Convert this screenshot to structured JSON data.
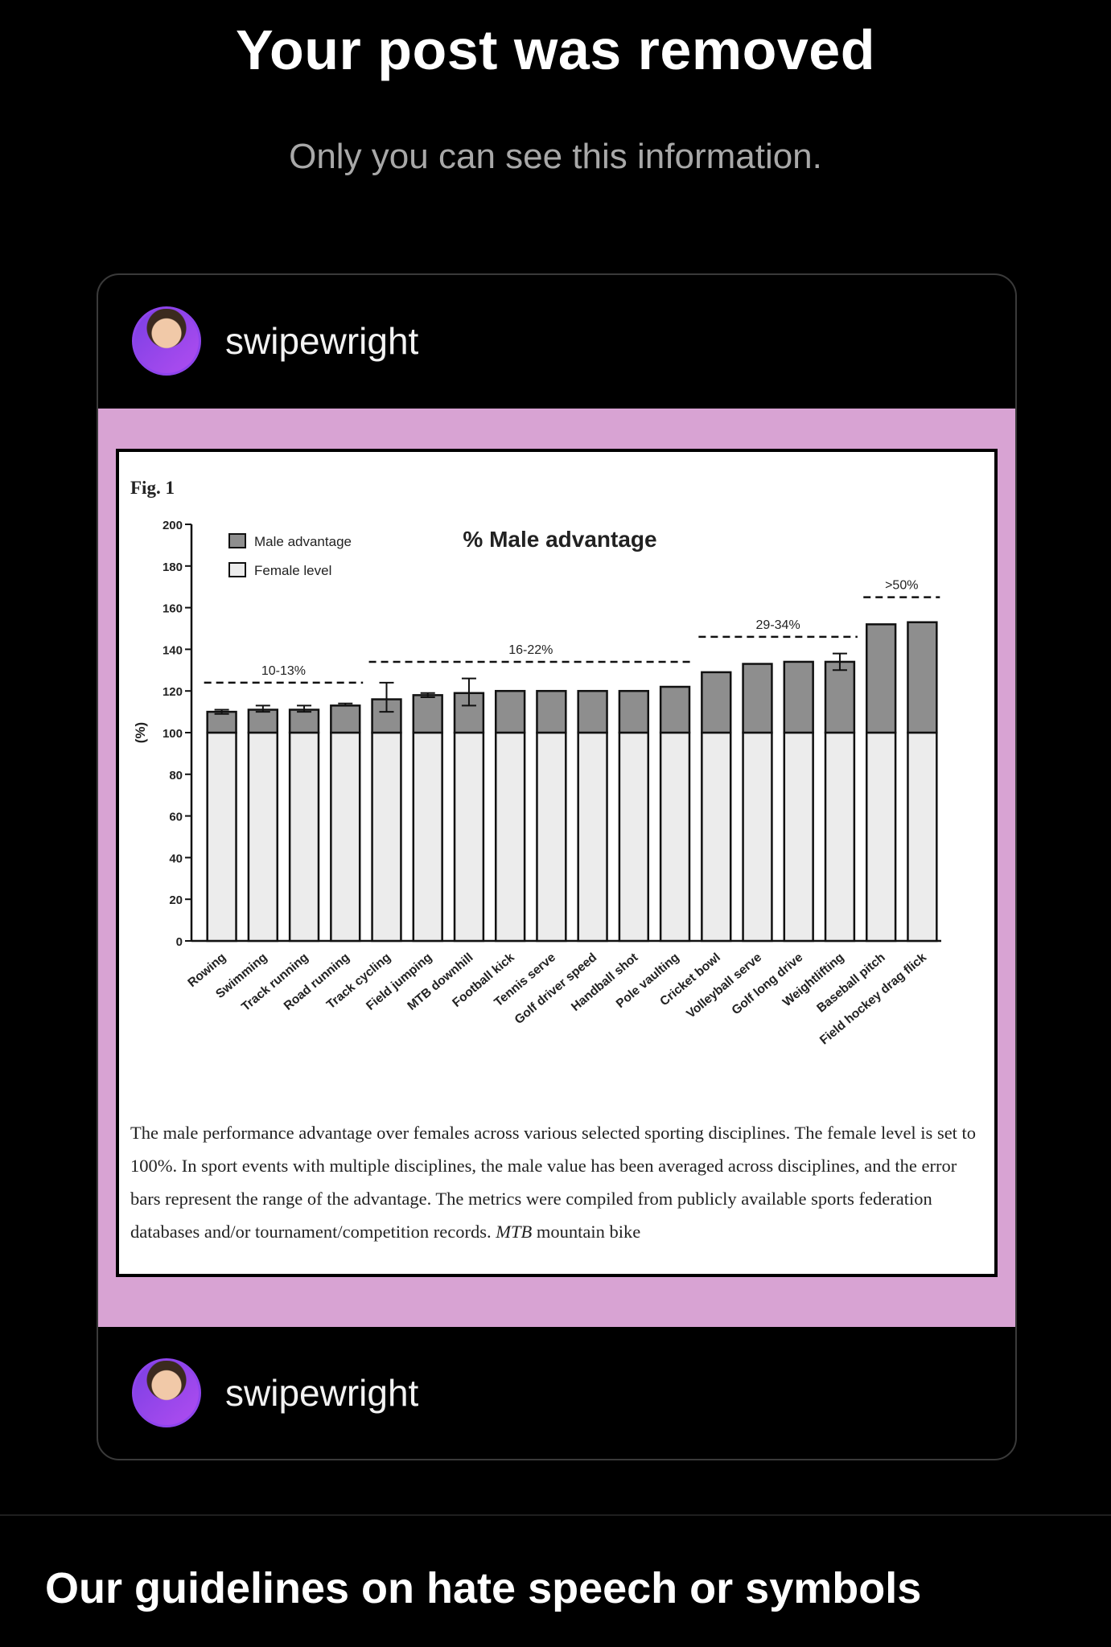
{
  "header": {
    "title": "Your post was removed",
    "subtitle": "Only you can see this information."
  },
  "post": {
    "username_top": "swipewright",
    "username_bottom": "swipewright",
    "avatar_icon": "user-avatar",
    "media_background": "#d8a3d3"
  },
  "figure": {
    "label": "Fig. 1",
    "caption_plain": "The male performance advantage over females across various selected sporting disciplines. The female level is set to 100%. In sport events with multiple disciplines, the male value has been averaged across disciplines, and the error bars represent the range of the advantage. The metrics were compiled from publicly available sports federation databases and/or tournament/competition records.",
    "caption_italic": "MTB",
    "caption_tail": "mountain bike"
  },
  "chart_data": {
    "type": "bar",
    "title": "% Male advantage",
    "ylabel": "(%)",
    "ylim": [
      0,
      200
    ],
    "yticks": [
      0,
      20,
      40,
      60,
      80,
      100,
      120,
      140,
      160,
      180,
      200
    ],
    "categories": [
      "Rowing",
      "Swimming",
      "Track running",
      "Road running",
      "Track cycling",
      "Field jumping",
      "MTB downhill",
      "Football kick",
      "Tennis serve",
      "Golf driver speed",
      "Handball shot",
      "Pole vaulting",
      "Cricket bowl",
      "Volleyball serve",
      "Golf long drive",
      "Weightlifting",
      "Baseball pitch",
      "Field hockey drag flick"
    ],
    "series": [
      {
        "name": "Female level",
        "color": "#ececec",
        "values": [
          100,
          100,
          100,
          100,
          100,
          100,
          100,
          100,
          100,
          100,
          100,
          100,
          100,
          100,
          100,
          100,
          100,
          100
        ]
      },
      {
        "name": "Male advantage",
        "color": "#8e8e8e",
        "values": [
          110,
          111,
          111,
          113,
          116,
          118,
          119,
          120,
          120,
          120,
          120,
          122,
          129,
          133,
          134,
          134,
          152,
          153
        ]
      }
    ],
    "error_bars": [
      [
        109,
        111
      ],
      [
        110,
        113
      ],
      [
        110,
        113
      ],
      [
        113,
        114
      ],
      [
        110,
        124
      ],
      [
        117,
        119
      ],
      [
        113,
        126
      ],
      null,
      null,
      null,
      null,
      null,
      null,
      null,
      null,
      [
        130,
        138
      ],
      null,
      null
    ],
    "groups": [
      {
        "label": "10-13%",
        "from": 0,
        "to": 3,
        "y": 124
      },
      {
        "label": "16-22%",
        "from": 4,
        "to": 11,
        "y": 134
      },
      {
        "label": "29-34%",
        "from": 12,
        "to": 15,
        "y": 146
      },
      {
        "label": ">50%",
        "from": 16,
        "to": 17,
        "y": 165
      }
    ],
    "legend": [
      "Male advantage",
      "Female level"
    ],
    "legend_position": "top-left"
  },
  "footer": {
    "guidelines_title": "Our guidelines on hate speech or symbols"
  }
}
